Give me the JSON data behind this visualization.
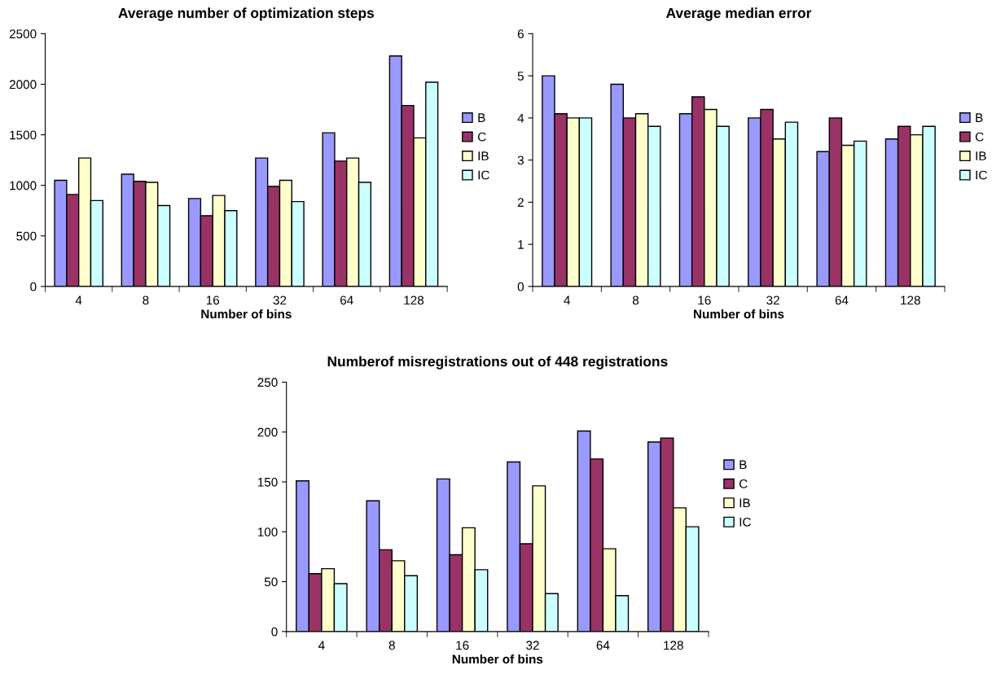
{
  "chart_data": [
    {
      "type": "bar",
      "title": "Average number of optimization steps",
      "xlabel": "Number of bins",
      "categories": [
        "4",
        "8",
        "16",
        "32",
        "64",
        "128"
      ],
      "ylim": [
        0,
        2500
      ],
      "yticks": [
        0,
        500,
        1000,
        1500,
        2000,
        2500
      ],
      "legend": "right",
      "grid": false,
      "series": [
        {
          "name": "B",
          "color": "#9999ff",
          "values": [
            1050,
            1110,
            870,
            1270,
            1520,
            2280
          ]
        },
        {
          "name": "C",
          "color": "#993366",
          "values": [
            910,
            1040,
            700,
            990,
            1240,
            1790
          ]
        },
        {
          "name": "IB",
          "color": "#ffffcc",
          "values": [
            1270,
            1030,
            900,
            1050,
            1270,
            1470
          ]
        },
        {
          "name": "IC",
          "color": "#ccffff",
          "values": [
            850,
            800,
            750,
            840,
            1030,
            2020
          ]
        }
      ]
    },
    {
      "type": "bar",
      "title": "Average median error",
      "xlabel": "Number of bins",
      "categories": [
        "4",
        "8",
        "16",
        "32",
        "64",
        "128"
      ],
      "ylim": [
        0,
        6
      ],
      "yticks": [
        0,
        1,
        2,
        3,
        4,
        5,
        6
      ],
      "legend": "right",
      "grid": false,
      "series": [
        {
          "name": "B",
          "color": "#9999ff",
          "values": [
            5.0,
            4.8,
            4.1,
            4.0,
            3.2,
            3.5
          ]
        },
        {
          "name": "C",
          "color": "#993366",
          "values": [
            4.1,
            4.0,
            4.5,
            4.2,
            4.0,
            3.8
          ]
        },
        {
          "name": "IB",
          "color": "#ffffcc",
          "values": [
            4.0,
            4.1,
            4.2,
            3.5,
            3.35,
            3.6
          ]
        },
        {
          "name": "IC",
          "color": "#ccffff",
          "values": [
            4.0,
            3.8,
            3.8,
            3.9,
            3.45,
            3.8
          ]
        }
      ]
    },
    {
      "type": "bar",
      "title": "Numberof misregistrations out of 448 registrations",
      "xlabel": "Number of bins",
      "categories": [
        "4",
        "8",
        "16",
        "32",
        "64",
        "128"
      ],
      "ylim": [
        0,
        250
      ],
      "yticks": [
        0,
        50,
        100,
        150,
        200,
        250
      ],
      "legend": "right",
      "grid": false,
      "series": [
        {
          "name": "B",
          "color": "#9999ff",
          "values": [
            151,
            131,
            153,
            170,
            201,
            190
          ]
        },
        {
          "name": "C",
          "color": "#993366",
          "values": [
            58,
            82,
            77,
            88,
            173,
            194
          ]
        },
        {
          "name": "IB",
          "color": "#ffffcc",
          "values": [
            63,
            71,
            104,
            146,
            83,
            124
          ]
        },
        {
          "name": "IC",
          "color": "#ccffff",
          "values": [
            48,
            56,
            62,
            38,
            36,
            105
          ]
        }
      ]
    }
  ]
}
